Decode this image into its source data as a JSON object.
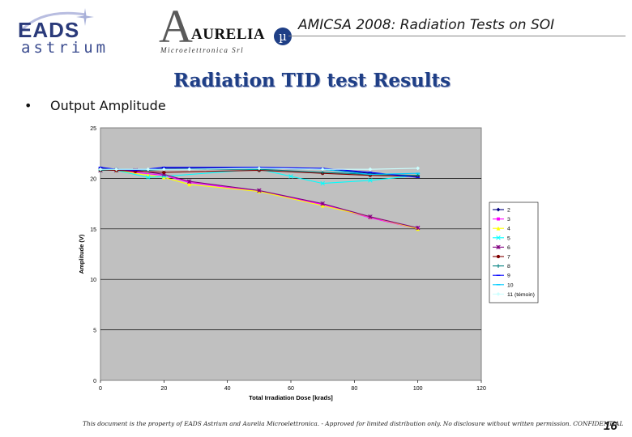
{
  "header": {
    "eads_text": "EADS",
    "astrium_text": "astrium",
    "aurelia_letter": "A",
    "aurelia_text": "AURELIA",
    "aurelia_subtitle": "Microelettronica Srl",
    "aurelia_mu": "µ",
    "conference_title": "AMICSA 2008: Radiation Tests on SOI"
  },
  "slide": {
    "title": "Radiation TID test Results",
    "bullet_marker": "•",
    "bullet_text": "Output Amplitude"
  },
  "footer": {
    "note": "This document is the property of EADS Astrium and Aurelia Microelettronica. - Approved for limited distribution only. No disclosure without written permission. CONFIDENTIAL",
    "page_number": "16"
  },
  "chart_data": {
    "type": "line",
    "title": "",
    "xlabel": "Total Irradiation Dose [krads]",
    "ylabel": "Amplitude (V)",
    "xlim": [
      0,
      120
    ],
    "ylim": [
      0,
      25
    ],
    "xticks": [
      "0",
      "20",
      "40",
      "60",
      "80",
      "100",
      "120"
    ],
    "yticks": [
      "0",
      "5",
      "10",
      "15",
      "20",
      "25"
    ],
    "grid": "horizontal",
    "background": "#c0c0c0",
    "legend_position": "right",
    "series": [
      {
        "name": "2",
        "color": "#000080",
        "marker": "diamond",
        "x": [
          0,
          5,
          11,
          20,
          50,
          70,
          85,
          100
        ],
        "y": [
          21.0,
          20.9,
          20.8,
          21.0,
          21.0,
          20.9,
          20.5,
          20.2
        ]
      },
      {
        "name": "3",
        "color": "#ff00ff",
        "marker": "square",
        "x": [
          0,
          5,
          11,
          20,
          28,
          50,
          70,
          85,
          100
        ],
        "y": [
          20.8,
          20.8,
          20.6,
          20.3,
          19.6,
          18.7,
          17.4,
          16.1,
          15.0
        ]
      },
      {
        "name": "4",
        "color": "#ffff00",
        "marker": "triangle",
        "x": [
          0,
          5,
          15,
          20,
          28,
          50,
          70,
          85,
          100
        ],
        "y": [
          20.9,
          20.8,
          20.3,
          20.1,
          19.4,
          18.7,
          17.3,
          16.2,
          15.0
        ]
      },
      {
        "name": "5",
        "color": "#00ffff",
        "marker": "x",
        "x": [
          0,
          5,
          15,
          20,
          50,
          60,
          70,
          85,
          100
        ],
        "y": [
          20.8,
          20.8,
          20.1,
          20.2,
          20.9,
          20.2,
          19.5,
          19.8,
          20.3
        ]
      },
      {
        "name": "6",
        "color": "#800080",
        "marker": "star",
        "x": [
          0,
          5,
          11,
          20,
          28,
          50,
          70,
          85,
          100
        ],
        "y": [
          20.8,
          20.8,
          20.8,
          20.4,
          19.7,
          18.8,
          17.5,
          16.2,
          15.1
        ]
      },
      {
        "name": "7",
        "color": "#800000",
        "marker": "circle",
        "x": [
          0,
          5,
          11,
          20,
          50,
          70,
          85,
          100
        ],
        "y": [
          20.8,
          20.8,
          20.7,
          20.6,
          20.8,
          20.5,
          20.3,
          20.2
        ]
      },
      {
        "name": "8",
        "color": "#008080",
        "marker": "plus",
        "x": [
          0,
          5,
          15,
          20,
          50,
          70,
          85,
          100
        ],
        "y": [
          20.8,
          20.9,
          20.8,
          20.9,
          20.9,
          20.6,
          20.4,
          20.3
        ]
      },
      {
        "name": "9",
        "color": "#0000ff",
        "marker": "dash",
        "x": [
          0,
          5,
          11,
          20,
          50,
          70,
          85,
          100
        ],
        "y": [
          21.1,
          20.9,
          20.8,
          21.1,
          21.1,
          21.0,
          20.6,
          20.1
        ]
      },
      {
        "name": "10",
        "color": "#00ccff",
        "marker": "dash",
        "x": [
          0,
          5,
          15,
          20,
          50,
          70,
          85,
          100
        ],
        "y": [
          20.9,
          20.9,
          20.9,
          20.9,
          21.0,
          20.9,
          20.4,
          20.5
        ]
      },
      {
        "name": "11 (témoin)",
        "color": "#ccffff",
        "marker": "diamond",
        "x": [
          0,
          5,
          15,
          20,
          28,
          50,
          70,
          85,
          100
        ],
        "y": [
          20.9,
          20.9,
          20.9,
          20.9,
          20.9,
          21.0,
          20.9,
          20.9,
          21.0
        ]
      }
    ]
  }
}
